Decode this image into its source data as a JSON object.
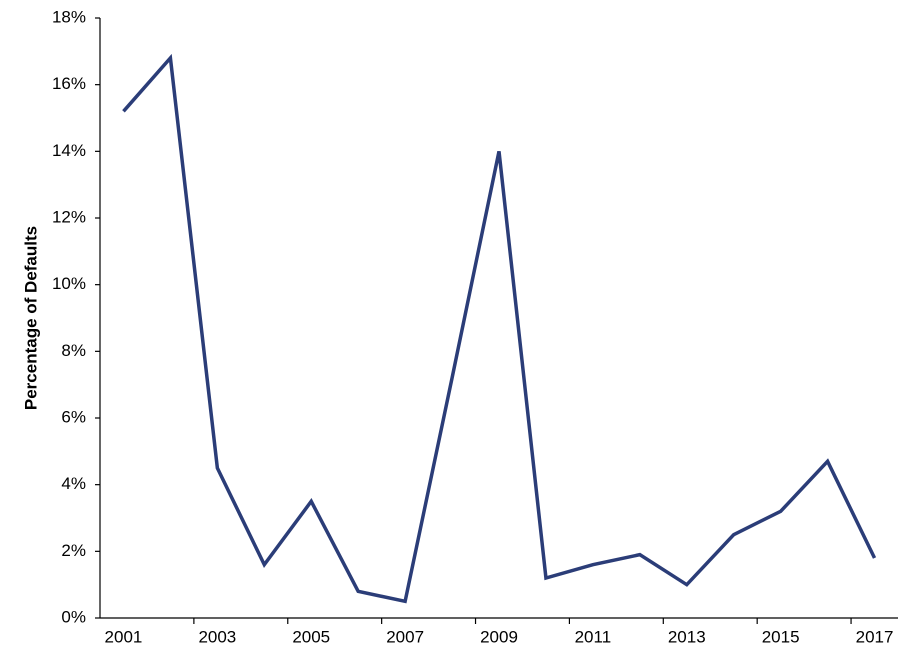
{
  "chart_data": {
    "type": "line",
    "ylabel": "Percentage of Defaults",
    "categories": [
      "2001",
      null,
      "2003",
      null,
      "2005",
      null,
      "2007",
      null,
      "2009",
      null,
      "2011",
      null,
      "2013",
      null,
      "2015",
      null,
      "2017"
    ],
    "values": [
      15.2,
      16.8,
      4.5,
      1.6,
      3.5,
      0.8,
      0.5,
      7.2,
      14.0,
      1.2,
      1.6,
      1.9,
      1.0,
      2.5,
      3.2,
      4.7,
      1.8
    ],
    "color": "#2b3d78",
    "ylim": [
      0,
      18
    ],
    "yticks": [
      {
        "value": 0,
        "label": "0%"
      },
      {
        "value": 2,
        "label": "2%"
      },
      {
        "value": 4,
        "label": "4%"
      },
      {
        "value": 6,
        "label": "6%"
      },
      {
        "value": 8,
        "label": "8%"
      },
      {
        "value": 10,
        "label": "10%"
      },
      {
        "value": 12,
        "label": "12%"
      },
      {
        "value": 14,
        "label": "14%"
      },
      {
        "value": 16,
        "label": "16%"
      },
      {
        "value": 18,
        "label": "18%"
      }
    ],
    "grid": false
  }
}
